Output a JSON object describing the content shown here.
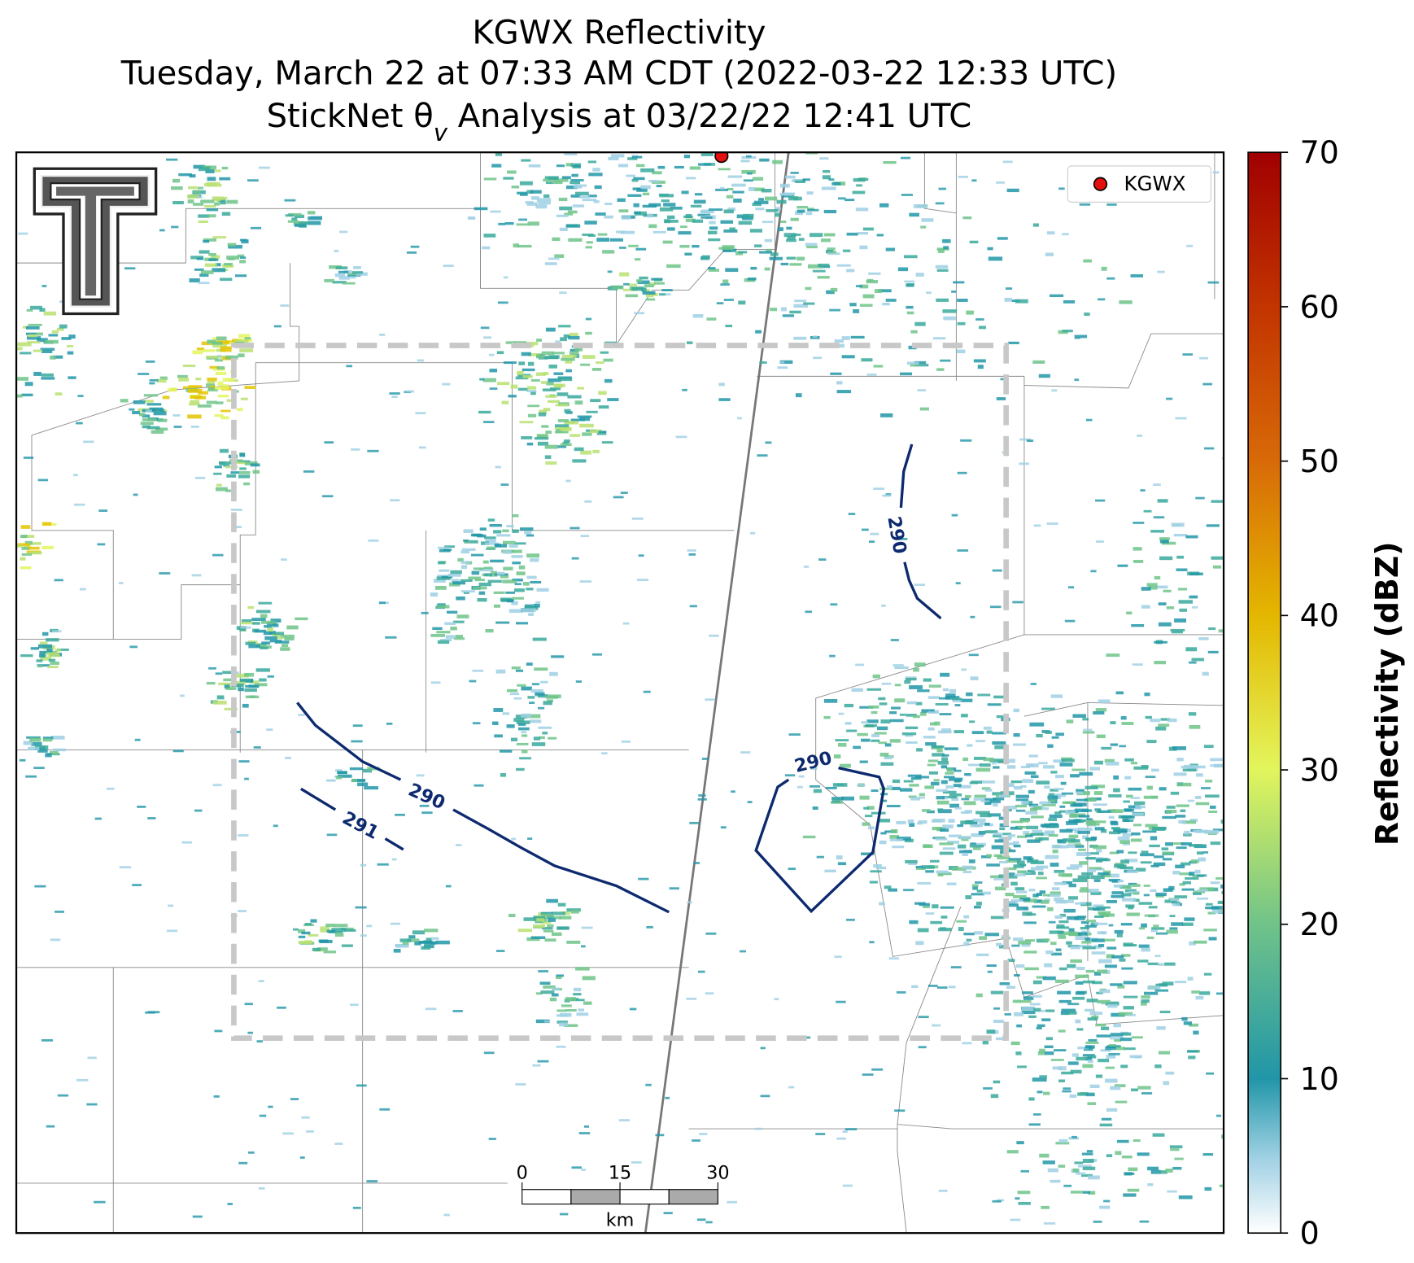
{
  "header": {
    "title_line1": "KGWX Reflectivity",
    "title_line2": "Tuesday, March 22 at 07:33 AM CDT (2022-03-22 12:33 UTC)",
    "title_line3": [
      "StickNet θ",
      "v",
      " Analysis at 03/22/22 12:41 UTC"
    ]
  },
  "legend": {
    "label": "KGWX"
  },
  "colorbar": {
    "label": "Reflectivity (dBZ)",
    "lim": [
      0,
      70
    ],
    "ticks": [
      0,
      10,
      20,
      30,
      40,
      50,
      60,
      70
    ]
  },
  "scale_bar": {
    "ticks": [
      0,
      15,
      30
    ],
    "unit": "km"
  },
  "contours": [
    {
      "label": "290"
    },
    {
      "label": "290"
    },
    {
      "label": "291"
    },
    {
      "label": "290"
    }
  ]
}
